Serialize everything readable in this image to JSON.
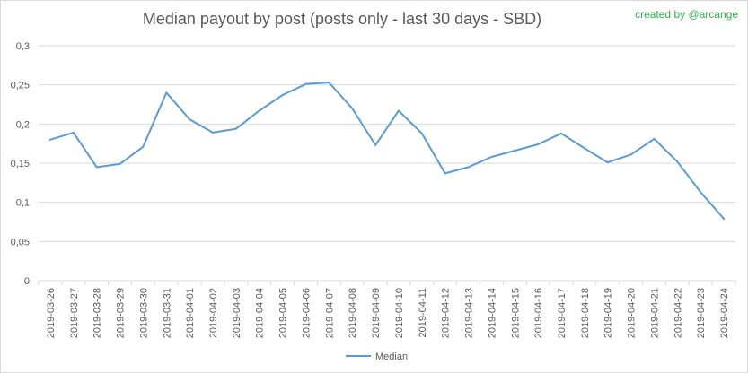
{
  "title": "Median payout by post (posts only - last 30 days - SBD)",
  "credit": "created by @arcange",
  "colors": {
    "line": "#5b9bd5",
    "grid": "#d9d9d9",
    "text": "#595959",
    "credit": "#2bb34a"
  },
  "chart_data": {
    "type": "line",
    "title": "Median payout by post (posts only - last 30 days - SBD)",
    "xlabel": "",
    "ylabel": "",
    "ylim": [
      0,
      0.3
    ],
    "yticks": [
      0,
      0.05,
      0.1,
      0.15,
      0.2,
      0.25,
      0.3
    ],
    "ytick_labels": [
      "0",
      "0,05",
      "0,1",
      "0,15",
      "0,2",
      "0,25",
      "0,3"
    ],
    "grid": true,
    "legend": "bottom",
    "categories": [
      "2019-03-26",
      "2019-03-27",
      "2019-03-28",
      "2019-03-29",
      "2019-03-30",
      "2019-03-31",
      "2019-04-01",
      "2019-04-02",
      "2019-04-03",
      "2019-04-04",
      "2019-04-05",
      "2019-04-06",
      "2019-04-07",
      "2019-04-08",
      "2019-04-09",
      "2019-04-10",
      "2019-04-11",
      "2019-04-12",
      "2019-04-13",
      "2019-04-14",
      "2019-04-15",
      "2019-04-16",
      "2019-04-17",
      "2019-04-18",
      "2019-04-19",
      "2019-04-20",
      "2019-04-21",
      "2019-04-22",
      "2019-04-23",
      "2019-04-24"
    ],
    "series": [
      {
        "name": "Median",
        "values": [
          0.18,
          0.189,
          0.145,
          0.149,
          0.171,
          0.24,
          0.206,
          0.189,
          0.194,
          0.217,
          0.237,
          0.251,
          0.253,
          0.22,
          0.173,
          0.217,
          0.188,
          0.137,
          0.145,
          0.158,
          0.166,
          0.174,
          0.188,
          0.169,
          0.151,
          0.161,
          0.181,
          0.152,
          0.113,
          0.079
        ]
      }
    ]
  }
}
